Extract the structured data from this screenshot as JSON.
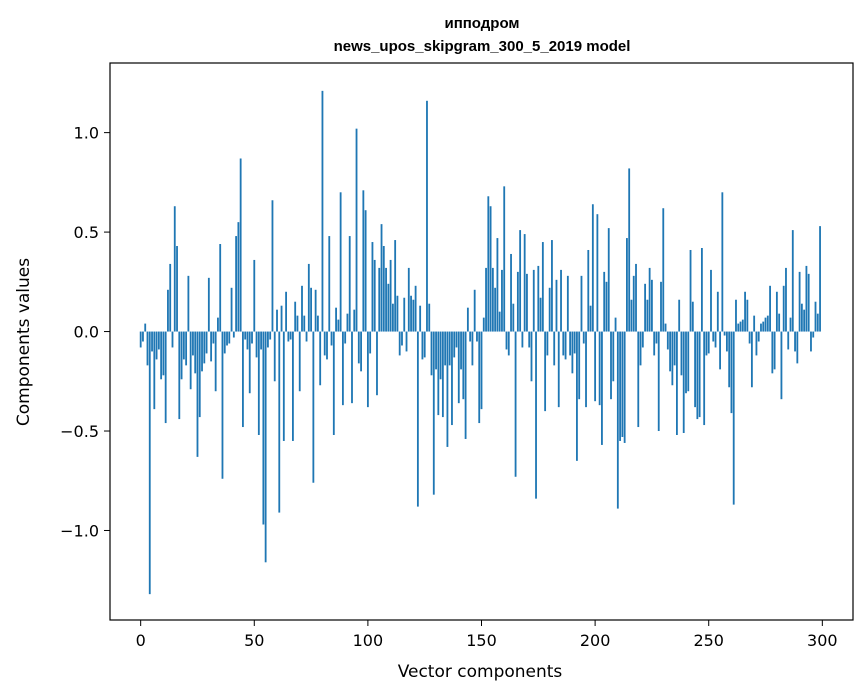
{
  "chart_data": {
    "type": "bar",
    "title": "ипподром",
    "subtitle": "news_upos_skipgram_300_5_2019 model",
    "xlabel": "Vector components",
    "ylabel": "Components values",
    "xlim": [
      -13.5,
      313.5
    ],
    "ylim": [
      -1.45,
      1.35
    ],
    "x_ticks": [
      0,
      50,
      100,
      150,
      200,
      250,
      300
    ],
    "x_tick_labels": [
      "0",
      "50",
      "100",
      "150",
      "200",
      "250",
      "300"
    ],
    "y_ticks": [
      -1.0,
      -0.5,
      0.0,
      0.5,
      1.0
    ],
    "y_tick_labels": [
      "−1.0",
      "−0.5",
      "0.0",
      "0.5",
      "1.0"
    ],
    "bar_color": "#1f77b4",
    "grid": false,
    "values": [
      -0.08,
      -0.05,
      0.04,
      -0.17,
      -1.32,
      -0.1,
      -0.39,
      -0.14,
      -0.09,
      -0.24,
      -0.22,
      -0.46,
      0.21,
      0.34,
      -0.08,
      0.63,
      0.43,
      -0.44,
      -0.24,
      -0.14,
      -0.17,
      0.28,
      -0.29,
      -0.12,
      -0.21,
      -0.63,
      -0.43,
      -0.2,
      -0.16,
      -0.11,
      0.27,
      -0.15,
      -0.06,
      -0.3,
      0.07,
      0.44,
      -0.74,
      -0.11,
      -0.07,
      -0.06,
      0.22,
      -0.03,
      0.48,
      0.55,
      0.87,
      -0.48,
      -0.04,
      -0.09,
      -0.31,
      -0.06,
      0.36,
      -0.13,
      -0.52,
      -0.09,
      -0.97,
      -1.16,
      -0.08,
      -0.04,
      0.66,
      -0.25,
      0.11,
      -0.91,
      0.13,
      -0.55,
      0.2,
      -0.05,
      -0.04,
      -0.55,
      0.15,
      0.08,
      -0.3,
      0.23,
      0.08,
      -0.05,
      0.34,
      0.22,
      -0.76,
      0.21,
      0.08,
      -0.27,
      1.21,
      -0.12,
      -0.14,
      0.48,
      -0.07,
      -0.52,
      0.12,
      0.06,
      0.7,
      -0.37,
      -0.06,
      0.09,
      0.48,
      -0.36,
      0.11,
      1.02,
      -0.16,
      -0.2,
      0.71,
      0.61,
      -0.38,
      -0.11,
      0.45,
      0.36,
      -0.32,
      0.32,
      0.54,
      0.43,
      0.32,
      0.24,
      0.36,
      0.14,
      0.46,
      0.18,
      -0.12,
      -0.07,
      0.17,
      -0.1,
      0.32,
      0.18,
      0.16,
      0.23,
      -0.88,
      0.13,
      -0.14,
      -0.13,
      1.16,
      0.14,
      -0.22,
      -0.82,
      -0.19,
      -0.42,
      -0.24,
      -0.43,
      -0.17,
      -0.58,
      -0.17,
      -0.47,
      -0.13,
      -0.08,
      -0.36,
      -0.19,
      -0.34,
      -0.54,
      0.12,
      -0.05,
      -0.17,
      0.21,
      -0.05,
      -0.46,
      -0.39,
      0.07,
      0.32,
      0.68,
      0.63,
      0.32,
      0.22,
      0.47,
      0.1,
      0.31,
      0.73,
      -0.09,
      -0.12,
      0.39,
      0.14,
      -0.73,
      0.3,
      0.51,
      -0.08,
      0.49,
      0.29,
      -0.08,
      -0.25,
      0.31,
      -0.84,
      0.33,
      0.17,
      0.45,
      -0.4,
      -0.12,
      0.22,
      0.46,
      -0.17,
      0.26,
      -0.38,
      0.31,
      -0.12,
      -0.14,
      0.28,
      -0.12,
      -0.21,
      -0.11,
      -0.65,
      -0.34,
      0.28,
      -0.06,
      -0.38,
      0.41,
      0.13,
      0.64,
      -0.35,
      0.59,
      -0.37,
      -0.57,
      0.3,
      0.25,
      0.52,
      -0.34,
      -0.25,
      0.07,
      -0.89,
      -0.55,
      -0.53,
      -0.56,
      0.47,
      0.82,
      0.16,
      0.28,
      0.34,
      -0.48,
      -0.17,
      -0.08,
      0.24,
      0.16,
      0.32,
      0.26,
      -0.12,
      -0.06,
      -0.5,
      0.25,
      0.62,
      0.04,
      -0.09,
      -0.2,
      -0.27,
      -0.17,
      -0.52,
      0.16,
      -0.22,
      -0.51,
      -0.31,
      -0.3,
      0.41,
      0.15,
      -0.38,
      -0.44,
      -0.43,
      0.42,
      -0.47,
      -0.12,
      -0.11,
      0.31,
      -0.05,
      -0.08,
      0.2,
      -0.19,
      0.7,
      -0.02,
      -0.1,
      -0.28,
      -0.41,
      -0.87,
      0.16,
      0.04,
      0.05,
      0.06,
      0.2,
      0.16,
      -0.06,
      -0.28,
      0.08,
      -0.12,
      -0.05,
      0.04,
      0.05,
      0.07,
      0.08,
      0.23,
      -0.21,
      -0.19,
      0.2,
      0.09,
      -0.34,
      0.23,
      0.32,
      -0.09,
      0.07,
      0.51,
      -0.1,
      -0.16,
      0.3,
      0.14,
      0.11,
      0.33,
      0.29,
      -0.1,
      -0.03,
      0.15,
      0.09,
      0.53
    ]
  }
}
